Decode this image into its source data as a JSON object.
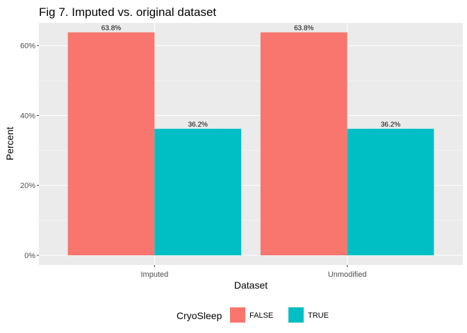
{
  "chart_data": {
    "type": "bar",
    "title": "Fig 7. Imputed vs. original dataset",
    "xlabel": "Dataset",
    "ylabel": "Percent",
    "categories": [
      "Imputed",
      "Unmodified"
    ],
    "series": [
      {
        "name": "FALSE",
        "values": [
          63.8,
          63.8
        ],
        "labels": [
          "63.8%",
          "63.8%"
        ],
        "color": "#f8766d"
      },
      {
        "name": "TRUE",
        "values": [
          36.2,
          36.2
        ],
        "labels": [
          "36.2%",
          "36.2%"
        ],
        "color": "#00bfc4"
      }
    ],
    "ylim": [
      0,
      66.5
    ],
    "yticks": [
      0,
      20,
      40,
      60
    ],
    "ytick_labels": [
      "0%",
      "20%",
      "40%",
      "60%"
    ],
    "grid": true,
    "legend_title": "CryoSleep",
    "legend_position": "bottom",
    "panel_background": "#ebebeb",
    "gridline_color": "#ffffff"
  }
}
